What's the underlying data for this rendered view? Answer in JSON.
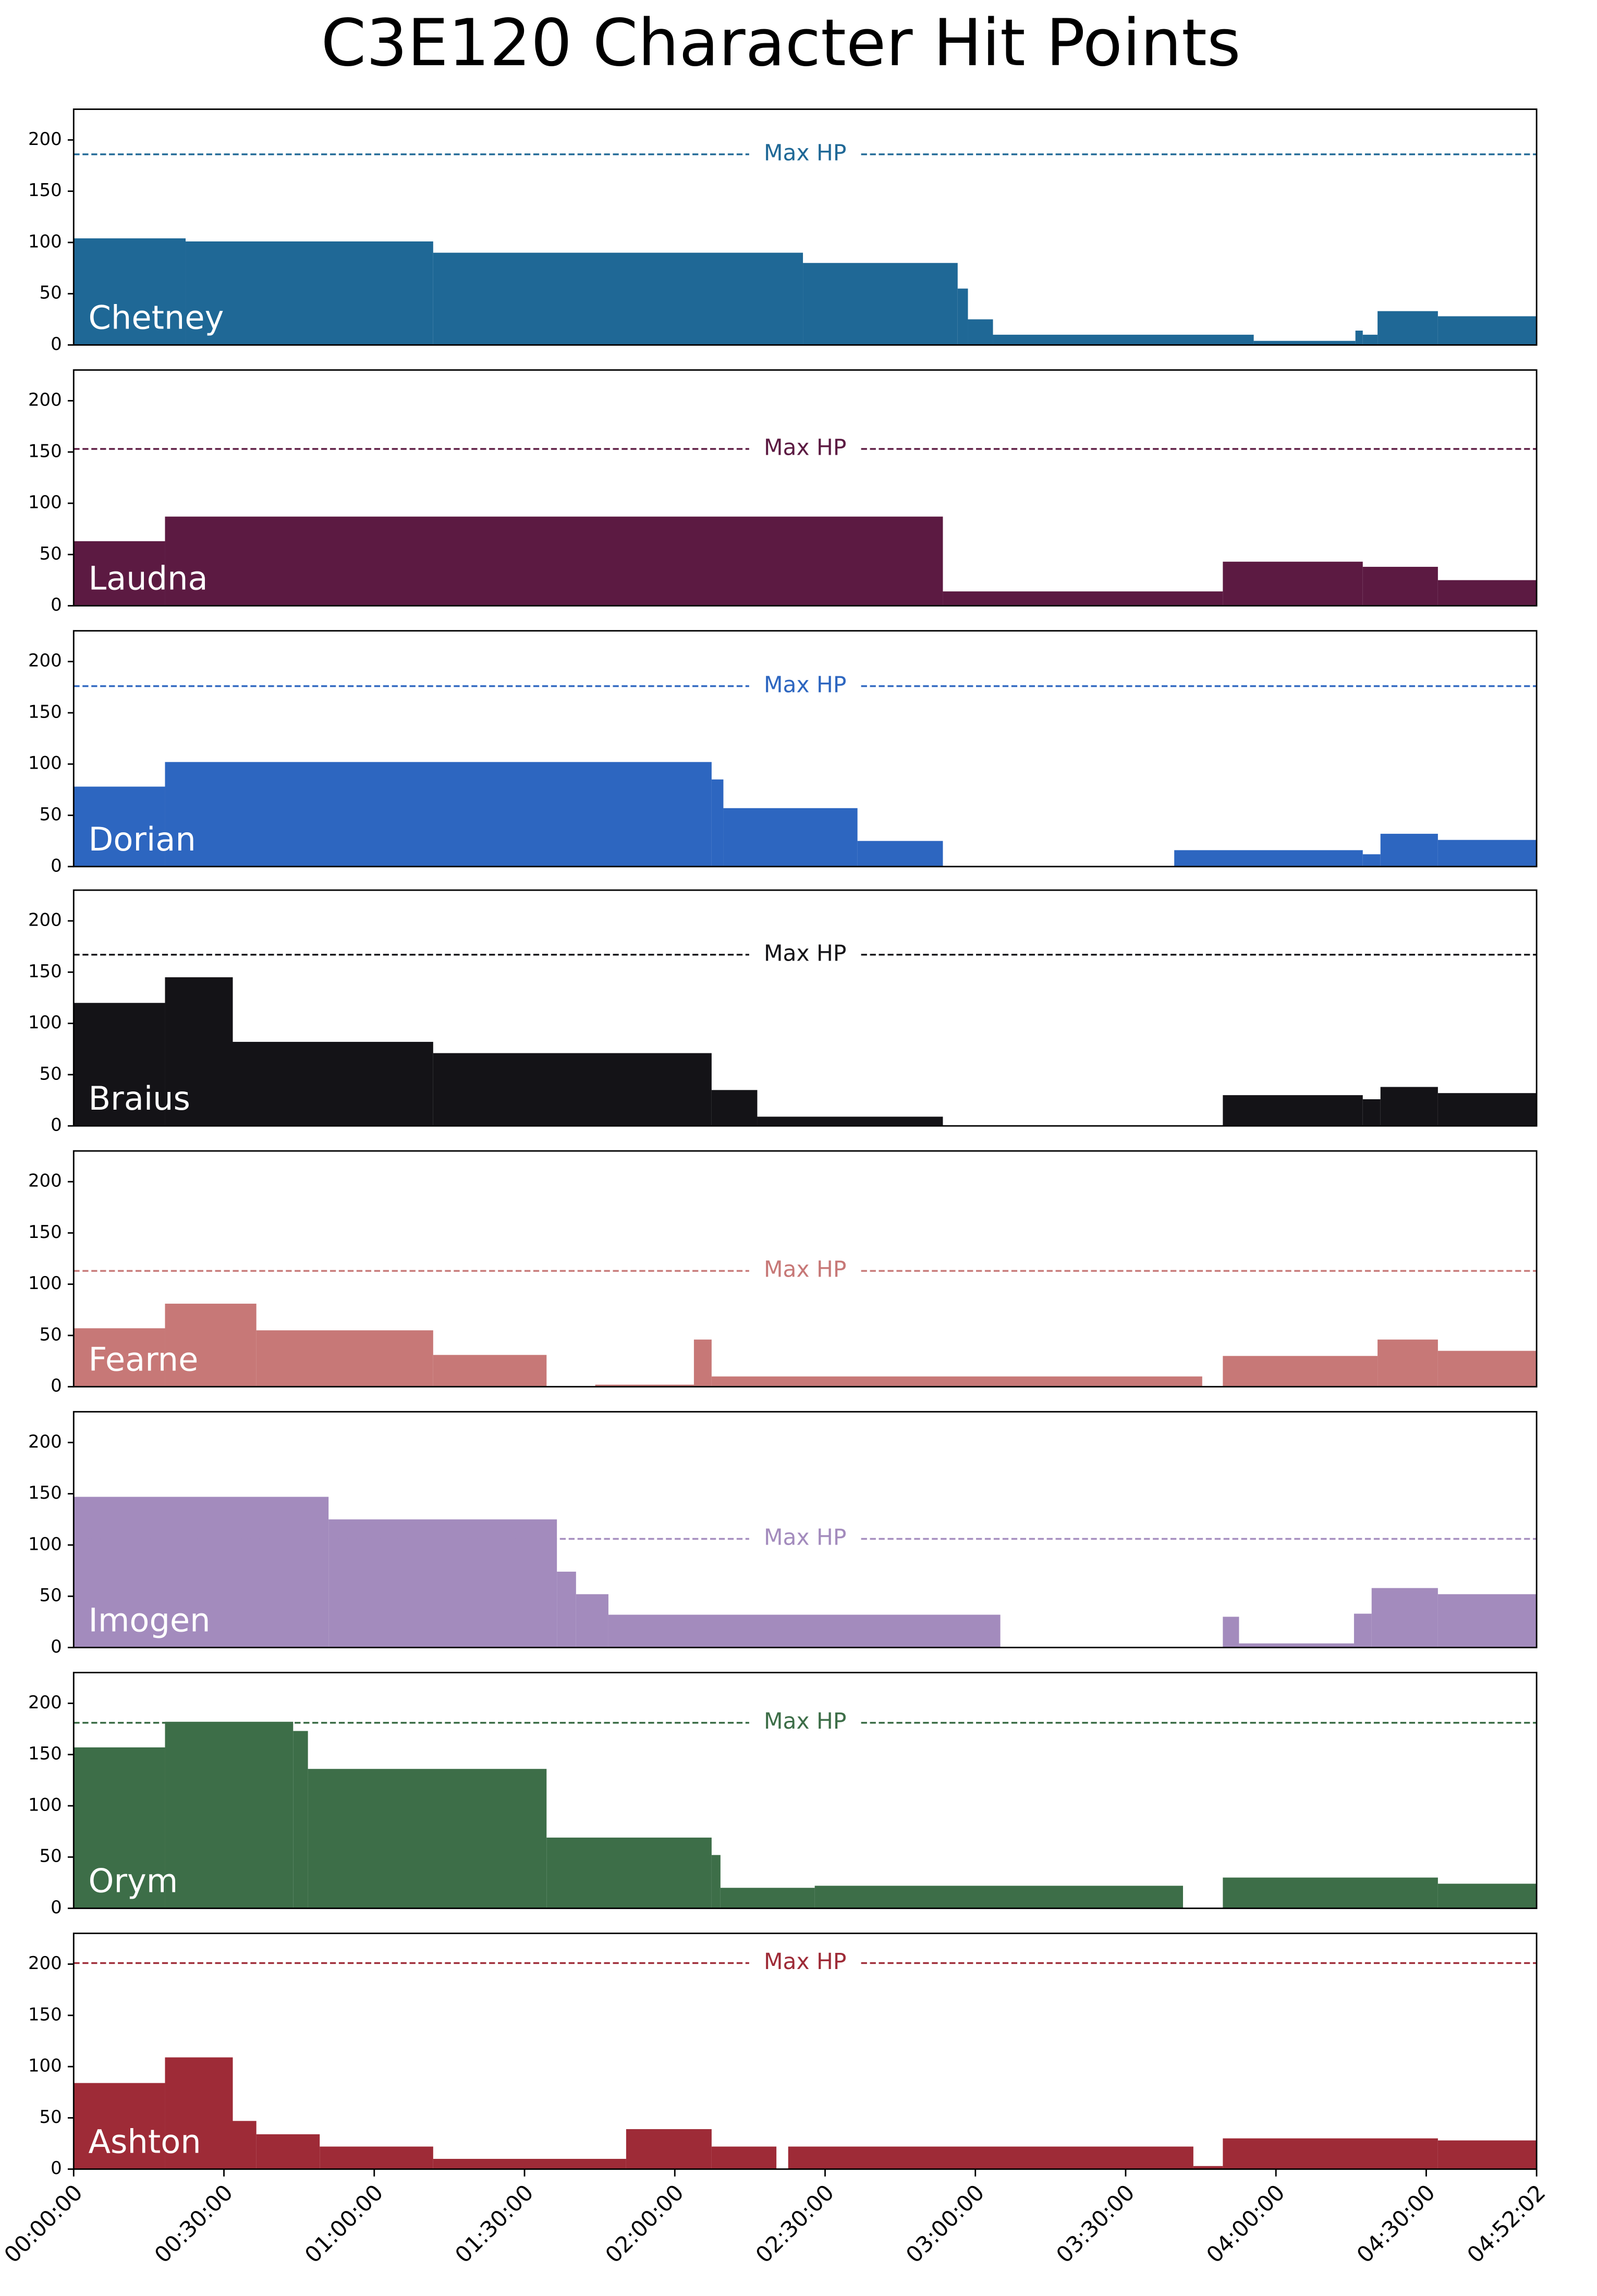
{
  "chart_data": {
    "type": "step",
    "title": "C3E120 Character Hit Points",
    "max_label": "Max HP",
    "xlim": [
      0,
      17522
    ],
    "xticks": [
      {
        "value": 0,
        "label": "00:00:00"
      },
      {
        "value": 1800,
        "label": "00:30:00"
      },
      {
        "value": 3600,
        "label": "01:00:00"
      },
      {
        "value": 5400,
        "label": "01:30:00"
      },
      {
        "value": 7200,
        "label": "02:00:00"
      },
      {
        "value": 9000,
        "label": "02:30:00"
      },
      {
        "value": 10800,
        "label": "03:00:00"
      },
      {
        "value": 12600,
        "label": "03:30:00"
      },
      {
        "value": 14400,
        "label": "04:00:00"
      },
      {
        "value": 16200,
        "label": "04:30:00"
      },
      {
        "value": 17522,
        "label": "04:52:02"
      }
    ],
    "ylim": [
      0,
      230
    ],
    "yticks": [
      0,
      50,
      100,
      150,
      200
    ],
    "series": [
      {
        "name": "Chetney",
        "color": "#1f6896",
        "max_hp": 186,
        "x": [
          0,
          1341,
          4306,
          8735,
          10588,
          10711,
          11011,
          14134,
          15352,
          15440,
          15617,
          16340
        ],
        "values": [
          104,
          101,
          90,
          80,
          55,
          25,
          10,
          4,
          14,
          10,
          33,
          28
        ]
      },
      {
        "name": "Laudna",
        "color": "#5c1a42",
        "max_hp": 153,
        "x": [
          0,
          1094,
          10411,
          13764,
          15440,
          16340
        ],
        "values": [
          63,
          87,
          14,
          43,
          38,
          25
        ]
      },
      {
        "name": "Dorian",
        "color": "#2d66c0",
        "max_hp": 176,
        "x": [
          0,
          1094,
          7641,
          7782,
          9388,
          10411,
          13182,
          15440,
          15652,
          16340
        ],
        "values": [
          78,
          102,
          85,
          57,
          25,
          0,
          16,
          12,
          32,
          26
        ]
      },
      {
        "name": "Braius",
        "color": "#141317",
        "max_hp": 167,
        "x": [
          0,
          1094,
          1906,
          4306,
          7641,
          8188,
          10411,
          13764,
          15440,
          15652,
          16340
        ],
        "values": [
          120,
          145,
          82,
          71,
          35,
          9,
          0,
          30,
          26,
          38,
          32
        ]
      },
      {
        "name": "Fearne",
        "color": "#c77877",
        "max_hp": 113,
        "x": [
          0,
          1094,
          2188,
          4306,
          5664,
          6247,
          7429,
          7641,
          13517,
          13764,
          15617,
          16340
        ],
        "values": [
          57,
          81,
          55,
          31,
          0,
          2,
          46,
          10,
          0,
          30,
          46,
          35
        ]
      },
      {
        "name": "Imogen",
        "color": "#a38bbd",
        "max_hp": 106,
        "x": [
          0,
          3053,
          5788,
          6017,
          6405,
          11099,
          13764,
          13958,
          15335,
          15546,
          16340
        ],
        "values": [
          147,
          125,
          74,
          52,
          32,
          0,
          30,
          4,
          33,
          58,
          52
        ]
      },
      {
        "name": "Orym",
        "color": "#3d6e48",
        "max_hp": 181,
        "x": [
          0,
          1094,
          2629,
          2806,
          5664,
          7641,
          7747,
          8876,
          13287,
          13764,
          16340
        ],
        "values": [
          157,
          182,
          173,
          136,
          69,
          52,
          20,
          22,
          0,
          30,
          24
        ]
      },
      {
        "name": "Ashton",
        "color": "#9e2b37",
        "max_hp": 201,
        "x": [
          0,
          1094,
          1906,
          2188,
          2947,
          4306,
          6617,
          7641,
          8417,
          8558,
          13411,
          13764,
          16340
        ],
        "values": [
          84,
          109,
          47,
          34,
          22,
          10,
          39,
          22,
          0,
          22,
          3,
          30,
          28
        ]
      }
    ]
  }
}
